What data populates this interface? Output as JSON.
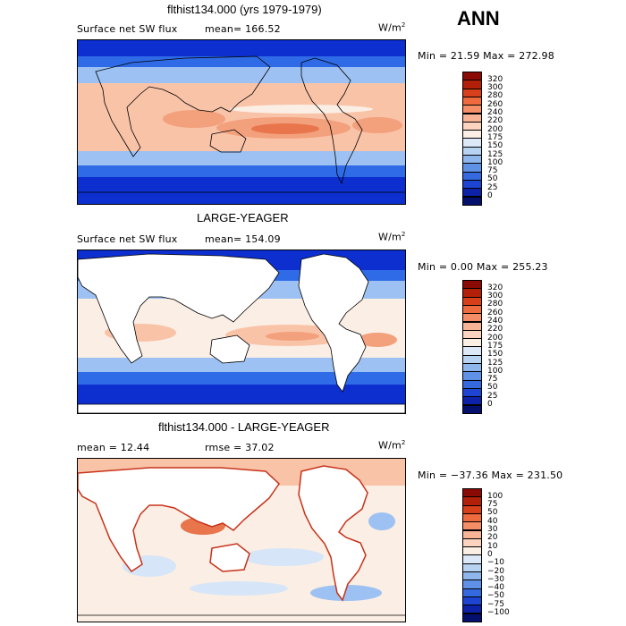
{
  "header": {
    "label": "ANN"
  },
  "panels": [
    {
      "id": "p1",
      "title": "flthist134.000 (yrs 1979-1979)",
      "left_label": "Surface net SW flux",
      "stat_label": "mean= 166.52",
      "units": "W/m",
      "units_sup": "2",
      "minmax": "Min =  21.59 Max = 272.98",
      "colorbar": {
        "labels": [
          "320",
          "300",
          "280",
          "260",
          "240",
          "220",
          "200",
          "175",
          "150",
          "125",
          "100",
          "75",
          "50",
          "25",
          "0"
        ],
        "colors": [
          "#8b0a04",
          "#b3200a",
          "#d8401b",
          "#ef6a3e",
          "#f58e66",
          "#f9b395",
          "#fcd3bf",
          "#fbeee4",
          "#dce8f7",
          "#b8d2f1",
          "#8fb6ec",
          "#5f92e6",
          "#3569e0",
          "#1d44d2",
          "#0d22a8",
          "#05106e"
        ]
      }
    },
    {
      "id": "p2",
      "title": "LARGE-YEAGER",
      "left_label": "Surface net SW flux",
      "stat_label": "mean= 154.09",
      "units": "W/m",
      "units_sup": "2",
      "minmax": "Min =   0.00 Max = 255.23",
      "colorbar": {
        "labels": [
          "320",
          "300",
          "280",
          "260",
          "240",
          "220",
          "200",
          "175",
          "150",
          "125",
          "100",
          "75",
          "50",
          "25",
          "0"
        ],
        "colors": [
          "#8b0a04",
          "#b3200a",
          "#d8401b",
          "#ef6a3e",
          "#f58e66",
          "#f9b395",
          "#fcd3bf",
          "#fbeee4",
          "#dce8f7",
          "#b8d2f1",
          "#8fb6ec",
          "#5f92e6",
          "#3569e0",
          "#1d44d2",
          "#0d22a8",
          "#05106e"
        ]
      }
    },
    {
      "id": "p3",
      "title": "flthist134.000 - LARGE-YEAGER",
      "left_label": "mean =  12.44",
      "stat_label": "rmse =  37.02",
      "units": "W/m",
      "units_sup": "2",
      "minmax": "Min = −37.36 Max = 231.50",
      "colorbar": {
        "labels": [
          "100",
          "75",
          "50",
          "40",
          "30",
          "20",
          "10",
          "0",
          "−10",
          "−20",
          "−30",
          "−40",
          "−50",
          "−75",
          "−100"
        ],
        "colors": [
          "#8b0a04",
          "#b3200a",
          "#d8401b",
          "#ef6a3e",
          "#f58e66",
          "#f9b395",
          "#fcd3bf",
          "#fbeee4",
          "#dce8f7",
          "#b8d2f1",
          "#8fb6ec",
          "#5f92e6",
          "#3569e0",
          "#1d44d2",
          "#0d22a8",
          "#05106e"
        ]
      }
    }
  ],
  "map_colors": {
    "deep_blue": "#0d2fd0",
    "mid_blue": "#2f6be6",
    "light_blue": "#9dc1f2",
    "pale_blue": "#d6e6f8",
    "cream": "#fbeee4",
    "peach": "#f9c3a8",
    "salmon": "#f3a07d",
    "orange": "#e8754c",
    "red": "#c7321a",
    "land": "#ffffff",
    "coast": "#000000"
  }
}
